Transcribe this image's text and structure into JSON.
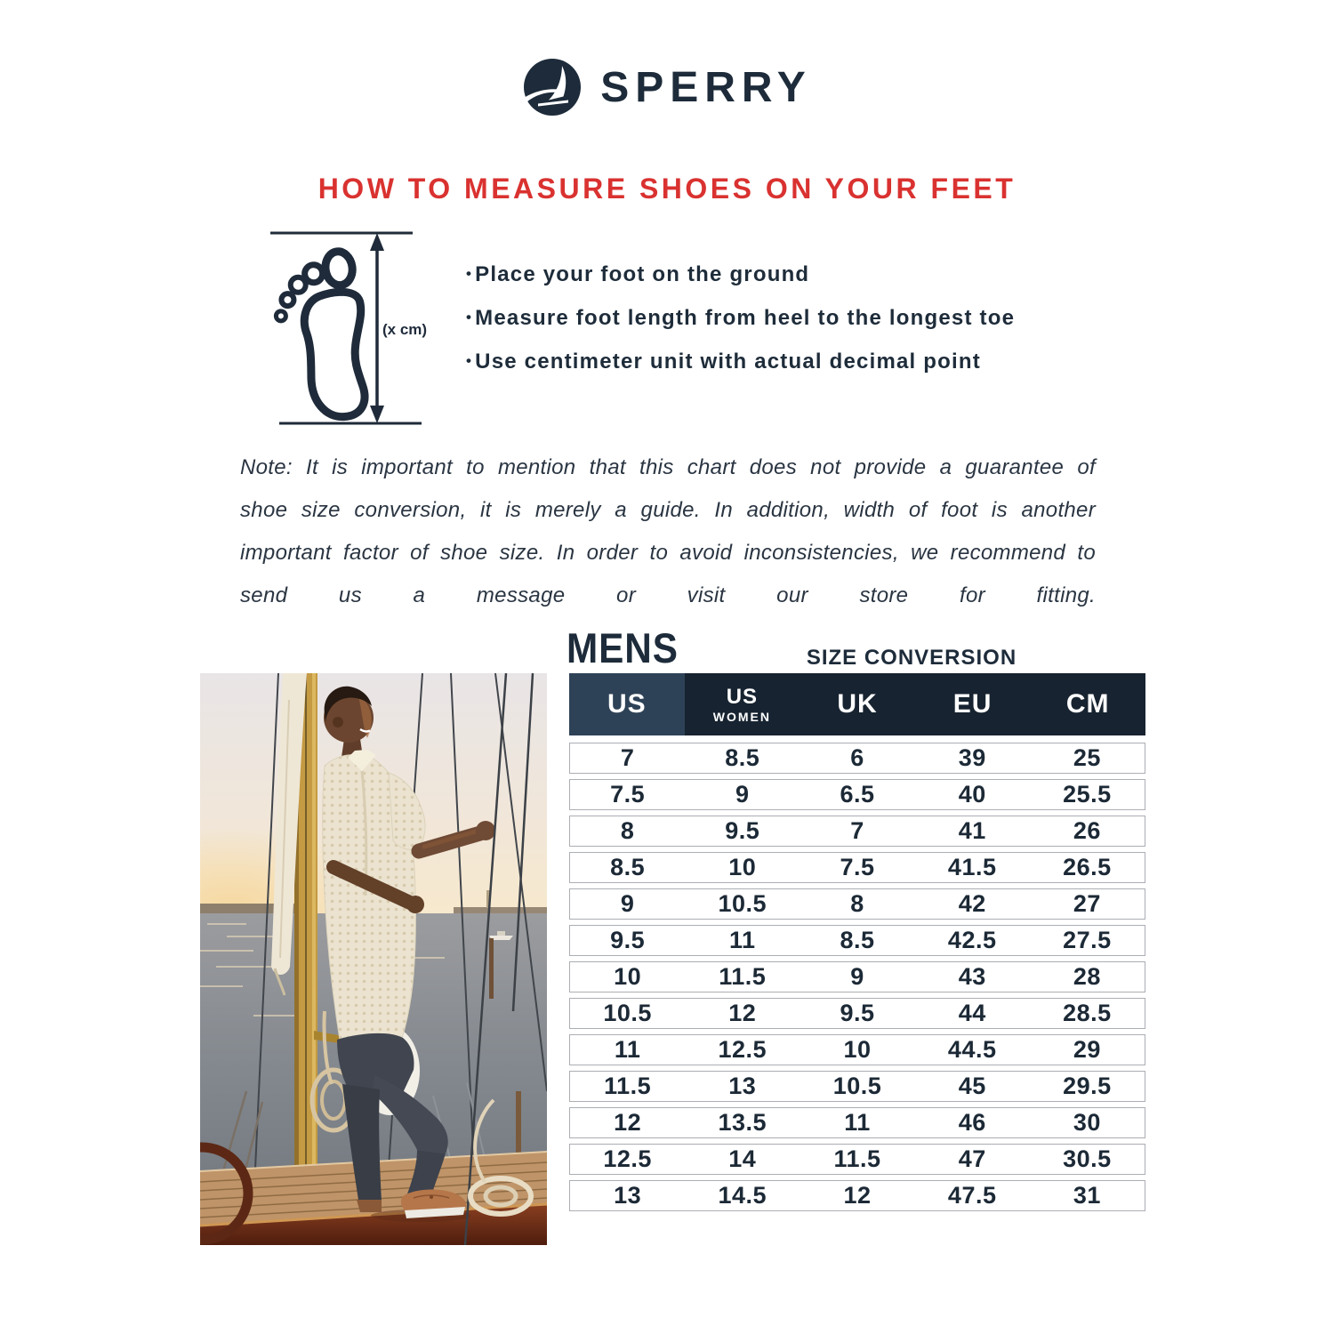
{
  "brand": {
    "name": "SPERRY",
    "logo_icon": "sailboat-in-circle"
  },
  "heading": "HOW TO MEASURE SHOES ON YOUR FEET",
  "measure": {
    "diagram_label": "(x cm)",
    "bullets": [
      "Place your foot on the ground",
      "Measure foot length from heel to the longest toe",
      "Use centimeter unit with actual decimal point"
    ]
  },
  "note": "Note: It is important to mention that this chart does not provide a guarantee of shoe size conversion, it is merely a guide. In addition, width of foot is another important factor of shoe size. In order to avoid inconsistencies, we recommend to send us a message or visit our store for fitting.",
  "section": {
    "title": "MENS",
    "subtitle": "SIZE CONVERSION"
  },
  "size_table": {
    "columns": [
      {
        "label": "US",
        "sublabel": ""
      },
      {
        "label": "US",
        "sublabel": "WOMEN"
      },
      {
        "label": "UK",
        "sublabel": ""
      },
      {
        "label": "EU",
        "sublabel": ""
      },
      {
        "label": "CM",
        "sublabel": ""
      }
    ],
    "rows": [
      [
        "7",
        "8.5",
        "6",
        "39",
        "25"
      ],
      [
        "7.5",
        "9",
        "6.5",
        "40",
        "25.5"
      ],
      [
        "8",
        "9.5",
        "7",
        "41",
        "26"
      ],
      [
        "8.5",
        "10",
        "7.5",
        "41.5",
        "26.5"
      ],
      [
        "9",
        "10.5",
        "8",
        "42",
        "27"
      ],
      [
        "9.5",
        "11",
        "8.5",
        "42.5",
        "27.5"
      ],
      [
        "10",
        "11.5",
        "9",
        "43",
        "28"
      ],
      [
        "10.5",
        "12",
        "9.5",
        "44",
        "28.5"
      ],
      [
        "11",
        "12.5",
        "10",
        "44.5",
        "29"
      ],
      [
        "11.5",
        "13",
        "10.5",
        "45",
        "29.5"
      ],
      [
        "12",
        "13.5",
        "11",
        "46",
        "30"
      ],
      [
        "12.5",
        "14",
        "11.5",
        "47",
        "30.5"
      ],
      [
        "13",
        "14.5",
        "12",
        "47.5",
        "31"
      ]
    ]
  },
  "photo": {
    "alt": "Smiling man standing on a wooden sailboat at sunset holding the rigging, wearing a cream crochet shirt, navy trousers and tan boat shoes"
  },
  "colors": {
    "navy": "#1d2b3a",
    "red": "#d93230",
    "table_header_dark": "#172330",
    "table_header_highlight": "#2e4257"
  }
}
